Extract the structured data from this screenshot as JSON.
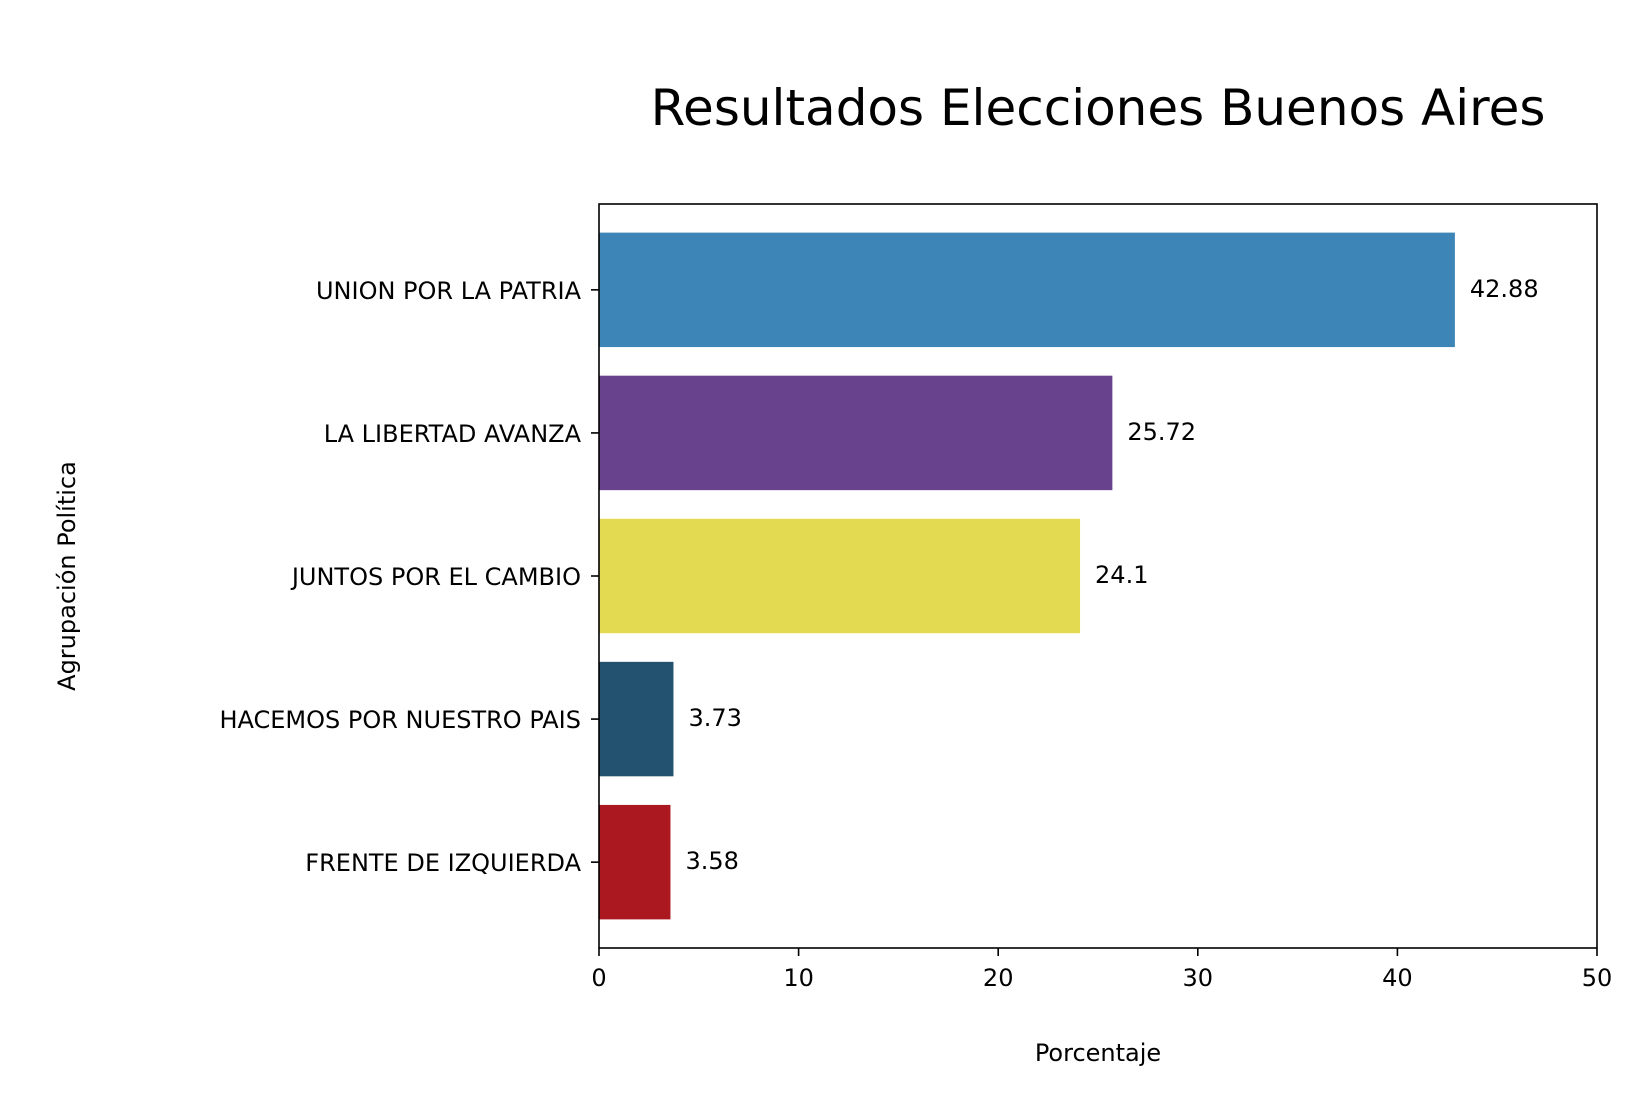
{
  "chart_data": {
    "type": "bar",
    "orientation": "horizontal",
    "title": "Resultados Elecciones Buenos Aires",
    "xlabel": "Porcentaje",
    "ylabel": "Agrupación Política",
    "xlim": [
      0,
      50
    ],
    "xticks": [
      0,
      10,
      20,
      30,
      40,
      50
    ],
    "grid": false,
    "legend": "none",
    "categories": [
      "UNION POR LA PATRIA",
      "LA LIBERTAD AVANZA",
      "JUNTOS POR EL CAMBIO",
      "HACEMOS POR NUESTRO PAIS",
      "FRENTE DE IZQUIERDA"
    ],
    "values": [
      42.88,
      25.72,
      24.1,
      3.73,
      3.58
    ],
    "data_labels": [
      "42.88",
      "25.72",
      "24.1",
      "3.73",
      "3.58"
    ],
    "colors": [
      "#3d84b7",
      "#69428d",
      "#e3da52",
      "#235170",
      "#ab1820"
    ]
  }
}
